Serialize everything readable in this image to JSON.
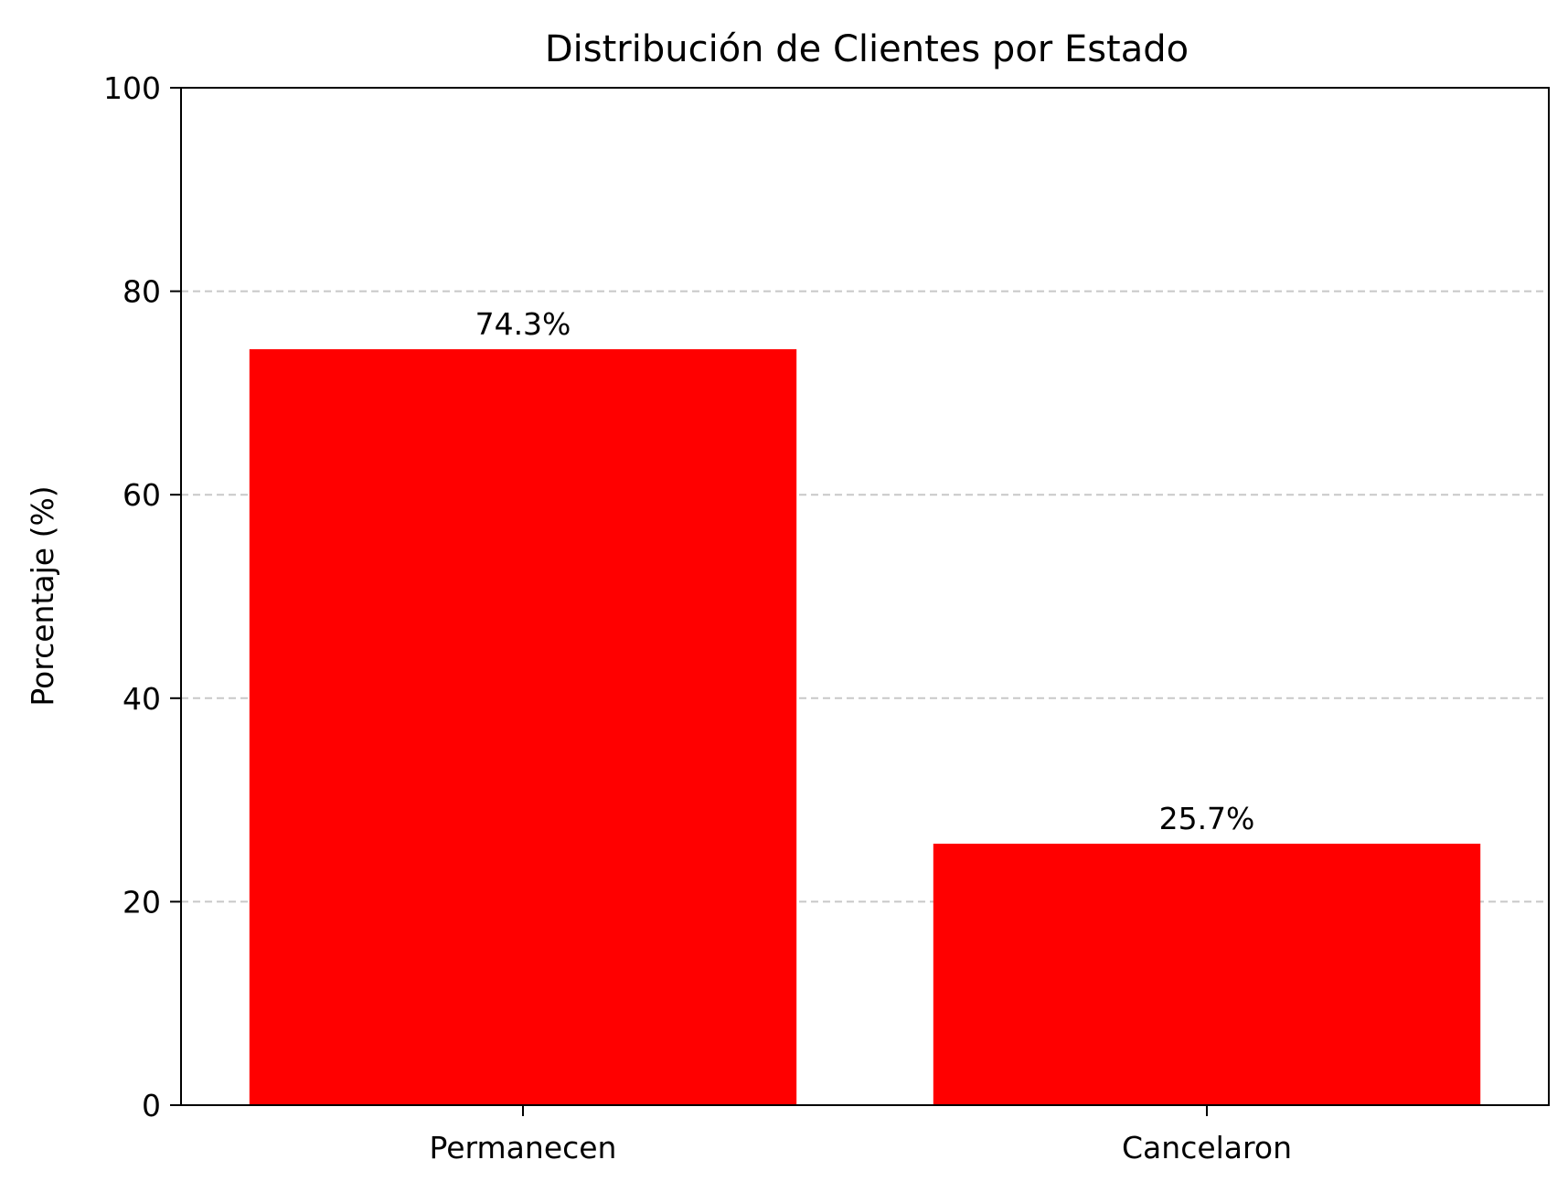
{
  "chart_data": {
    "type": "bar",
    "title": "Distribución de Clientes por Estado",
    "xlabel": "",
    "ylabel": "Porcentaje (%)",
    "categories": [
      "Permanecen",
      "Cancelaron"
    ],
    "values": [
      74.3,
      25.7
    ],
    "data_labels": [
      "74.3%",
      "25.7%"
    ],
    "ylim": [
      0,
      100
    ],
    "yticks": [
      0,
      20,
      40,
      60,
      80,
      100
    ],
    "grid": "y-dashed",
    "legend": "none",
    "colors": {
      "bar": "#ff0000",
      "grid": "#c8c8c8",
      "axis": "#000000"
    }
  }
}
